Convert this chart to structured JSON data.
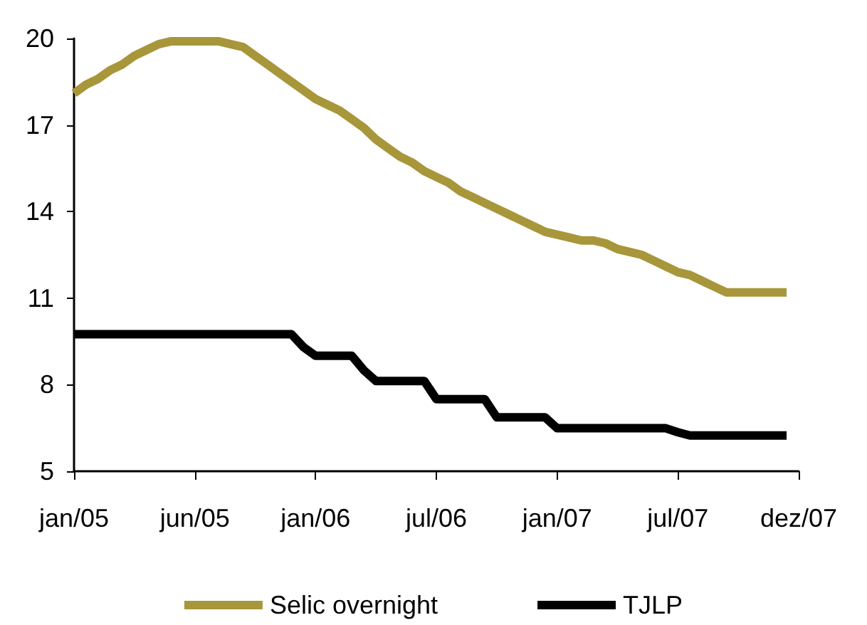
{
  "chart_data": {
    "type": "line",
    "categories": [
      "jan/05",
      null,
      null,
      null,
      null,
      null,
      null,
      null,
      null,
      null,
      "jun/05",
      null,
      null,
      null,
      null,
      null,
      null,
      null,
      null,
      null,
      "jan/06",
      null,
      null,
      null,
      null,
      null,
      null,
      null,
      null,
      null,
      "jul/06",
      null,
      null,
      null,
      null,
      null,
      null,
      null,
      null,
      null,
      "jan/07",
      null,
      null,
      null,
      null,
      null,
      null,
      null,
      null,
      null,
      "jul/07",
      null,
      null,
      null,
      null,
      null,
      null,
      null,
      null,
      null,
      "dez/07"
    ],
    "series": [
      {
        "name": "Selic overnight",
        "color": "#a8963a",
        "values": [
          18.1,
          18.4,
          18.6,
          18.9,
          19.1,
          19.4,
          19.6,
          19.8,
          19.9,
          19.9,
          19.9,
          19.9,
          19.9,
          19.8,
          19.7,
          19.4,
          19.1,
          18.8,
          18.5,
          18.2,
          17.9,
          17.7,
          17.5,
          17.2,
          16.9,
          16.5,
          16.2,
          15.9,
          15.7,
          15.4,
          15.2,
          15.0,
          14.7,
          14.5,
          14.3,
          14.1,
          13.9,
          13.7,
          13.5,
          13.3,
          13.2,
          13.1,
          13.0,
          13.0,
          12.9,
          12.7,
          12.6,
          12.5,
          12.3,
          12.1,
          11.9,
          11.8,
          11.6,
          11.4,
          11.2,
          11.2,
          11.2,
          11.2,
          11.2,
          11.2,
          null
        ]
      },
      {
        "name": "TJLP",
        "color": "#000000",
        "values": [
          9.75,
          9.75,
          9.75,
          9.75,
          9.75,
          9.75,
          9.75,
          9.75,
          9.75,
          9.75,
          9.75,
          9.75,
          9.75,
          9.75,
          9.75,
          9.75,
          9.75,
          9.75,
          9.75,
          9.3,
          9.0,
          9.0,
          9.0,
          9.0,
          8.5,
          8.13,
          8.13,
          8.13,
          8.13,
          8.13,
          7.5,
          7.5,
          7.5,
          7.5,
          7.5,
          6.87,
          6.87,
          6.87,
          6.87,
          6.87,
          6.49,
          6.49,
          6.49,
          6.49,
          6.49,
          6.49,
          6.49,
          6.49,
          6.49,
          6.49,
          6.35,
          6.24,
          6.24,
          6.24,
          6.24,
          6.24,
          6.24,
          6.24,
          6.24,
          6.24,
          null
        ]
      }
    ],
    "ylim": [
      5,
      20
    ],
    "yticks": [
      5,
      8,
      11,
      14,
      17,
      20
    ],
    "grid": false,
    "legend": "bottom",
    "marker": "none",
    "line_style": "solid"
  }
}
